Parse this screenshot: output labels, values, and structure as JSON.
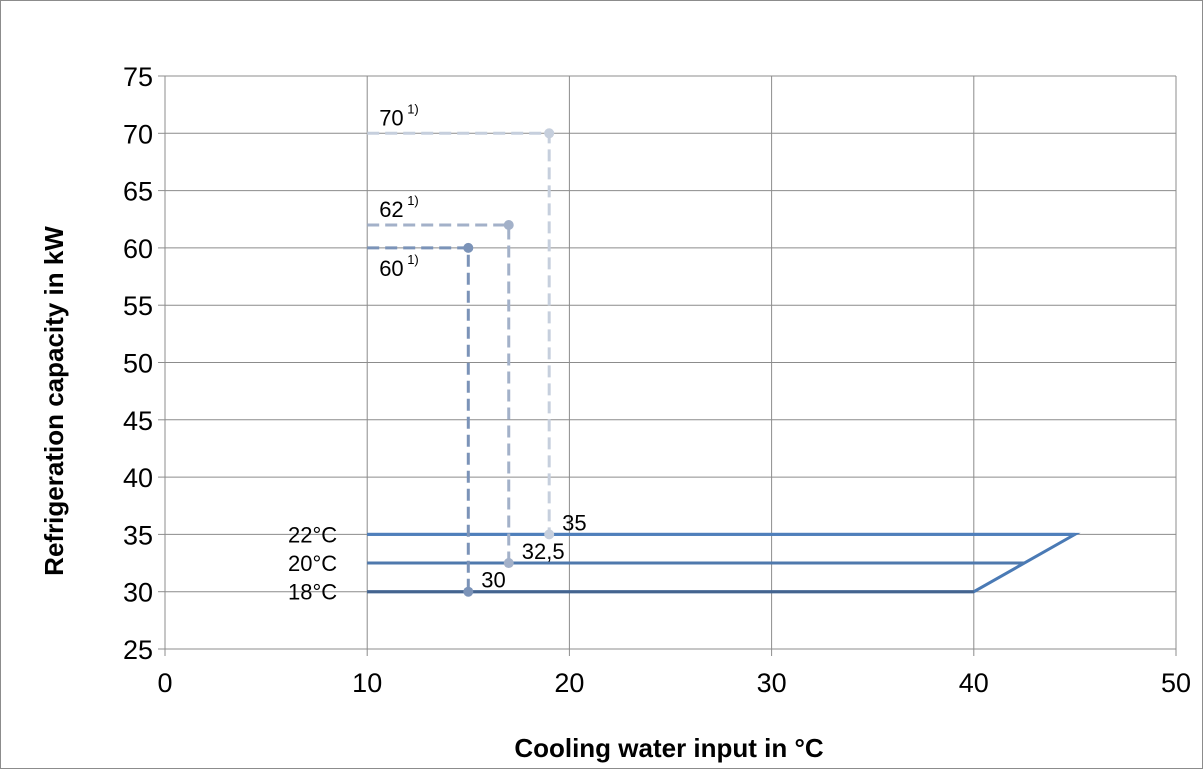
{
  "chart_data": {
    "type": "line",
    "title": "",
    "xlabel": "Cooling water input in °C",
    "ylabel": "Refrigeration capacity in kW",
    "xlim": [
      0,
      50
    ],
    "ylim": [
      25,
      75
    ],
    "x_ticks": [
      "0",
      "10",
      "20",
      "30",
      "40",
      "50"
    ],
    "y_ticks": [
      "25",
      "30",
      "35",
      "40",
      "45",
      "50",
      "55",
      "60",
      "65",
      "70",
      "75"
    ],
    "grid": true,
    "legend": "none",
    "operating_outline": {
      "color": "#4a7ab5",
      "points": [
        [
          10,
          35
        ],
        [
          45,
          35
        ],
        [
          40,
          30
        ],
        [
          10,
          30
        ]
      ]
    },
    "series": [
      {
        "label": "18°C",
        "y": 30,
        "x_range": [
          10,
          40
        ],
        "color": "#44648f",
        "marker_x": 15,
        "marker_label": "30",
        "peak": 60,
        "peak_label": "60",
        "peak_note": "1)"
      },
      {
        "label": "20°C",
        "y": 32.5,
        "x_range": [
          10,
          42.5
        ],
        "color": "#4f79ad",
        "marker_x": 17,
        "marker_label": "32,5",
        "peak": 62,
        "peak_label": "62",
        "peak_note": "1)"
      },
      {
        "label": "22°C",
        "y": 35,
        "x_range": [
          10,
          45
        ],
        "color": "#4f7fbb",
        "marker_x": 19,
        "marker_label": "35",
        "peak": 70,
        "peak_label": "70",
        "peak_note": "1)"
      }
    ],
    "dashed_colors": [
      "#7b93b8",
      "#a3b1c9",
      "#c6cfdd"
    ]
  }
}
